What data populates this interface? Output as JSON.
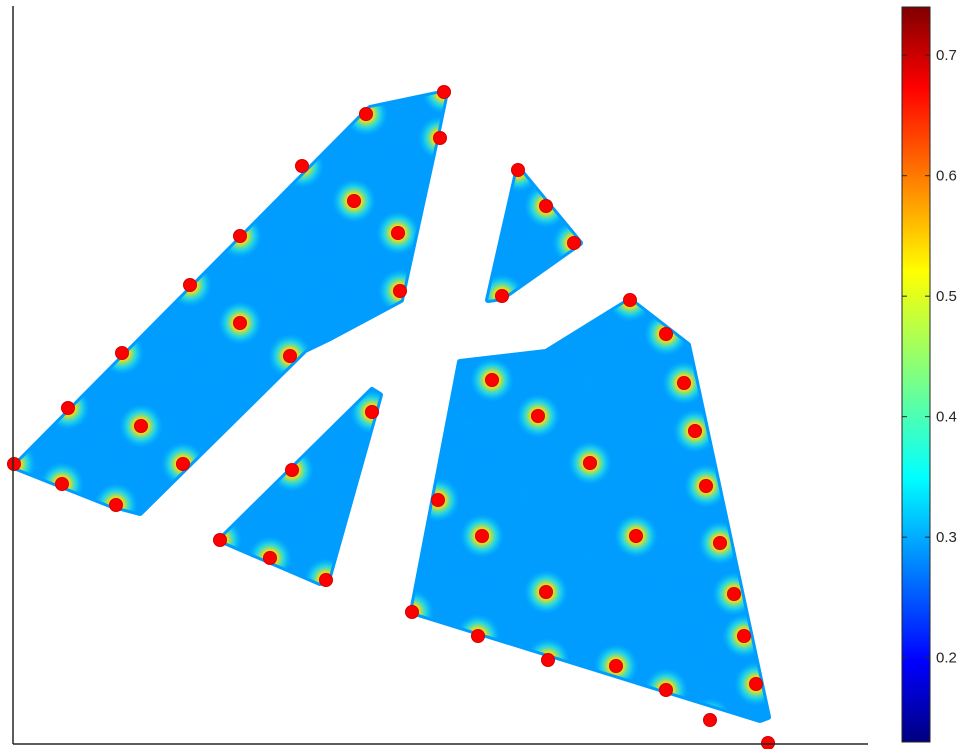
{
  "chart_data": {
    "type": "scatter",
    "title": "",
    "xlabel": "",
    "ylabel": "",
    "grid": false,
    "axes_visible": [
      "left",
      "bottom"
    ],
    "colormap": "jet",
    "colorbar": {
      "position": "right",
      "limits": [
        0.13,
        0.74
      ],
      "ticks": [
        0.2,
        0.3,
        0.4,
        0.5,
        0.6,
        0.7
      ],
      "tick_labels": [
        "0.2",
        "0.3",
        "0.4",
        "0.5",
        "0.6",
        "0.7"
      ]
    },
    "field": {
      "background_value": 0.3,
      "hotspot_value": 0.7,
      "marker_color": "#ff0000",
      "regions": [
        {
          "name": "upper-left polygon",
          "outline": [
            [
              14,
              467
            ],
            [
              370,
              108
            ],
            [
              446,
              92
            ],
            [
              436,
              140
            ],
            [
              401,
              300
            ],
            [
              330,
              338
            ],
            [
              305,
              350
            ],
            [
              140,
              513
            ],
            [
              110,
              505
            ]
          ]
        },
        {
          "name": "small upper triangle",
          "outline": [
            [
              518,
              168
            ],
            [
              580,
              243
            ],
            [
              502,
              298
            ],
            [
              488,
              300
            ]
          ]
        },
        {
          "name": "small lower triangle",
          "outline": [
            [
              220,
              540
            ],
            [
              372,
              390
            ],
            [
              380,
              395
            ],
            [
              328,
              580
            ],
            [
              320,
              583
            ]
          ]
        },
        {
          "name": "lower-right polygon",
          "outline": [
            [
              412,
              612
            ],
            [
              460,
              362
            ],
            [
              546,
              352
            ],
            [
              630,
              300
            ],
            [
              688,
              345
            ],
            [
              768,
              717
            ],
            [
              760,
              720
            ]
          ]
        }
      ],
      "hotspots": [
        [
          14,
          464
        ],
        [
          62,
          484
        ],
        [
          116,
          505
        ],
        [
          183,
          464
        ],
        [
          141,
          426
        ],
        [
          68,
          408
        ],
        [
          122,
          353
        ],
        [
          190,
          285
        ],
        [
          240,
          323
        ],
        [
          290,
          356
        ],
        [
          240,
          236
        ],
        [
          302,
          166
        ],
        [
          354,
          201
        ],
        [
          366,
          114
        ],
        [
          444,
          92
        ],
        [
          440,
          138
        ],
        [
          398,
          233
        ],
        [
          400,
          291
        ],
        [
          518,
          170
        ],
        [
          546,
          206
        ],
        [
          574,
          243
        ],
        [
          502,
          296
        ],
        [
          220,
          540
        ],
        [
          270,
          558
        ],
        [
          326,
          580
        ],
        [
          292,
          470
        ],
        [
          372,
          412
        ],
        [
          412,
          612
        ],
        [
          478,
          636
        ],
        [
          548,
          660
        ],
        [
          616,
          666
        ],
        [
          666,
          690
        ],
        [
          710,
          720
        ],
        [
          768,
          743
        ],
        [
          756,
          684
        ],
        [
          744,
          636
        ],
        [
          734,
          594
        ],
        [
          720,
          543
        ],
        [
          706,
          486
        ],
        [
          695,
          431
        ],
        [
          684,
          383
        ],
        [
          666,
          334
        ],
        [
          630,
          300
        ],
        [
          492,
          380
        ],
        [
          438,
          500
        ],
        [
          482,
          536
        ],
        [
          538,
          416
        ],
        [
          590,
          463
        ],
        [
          636,
          536
        ],
        [
          546,
          592
        ]
      ]
    }
  }
}
